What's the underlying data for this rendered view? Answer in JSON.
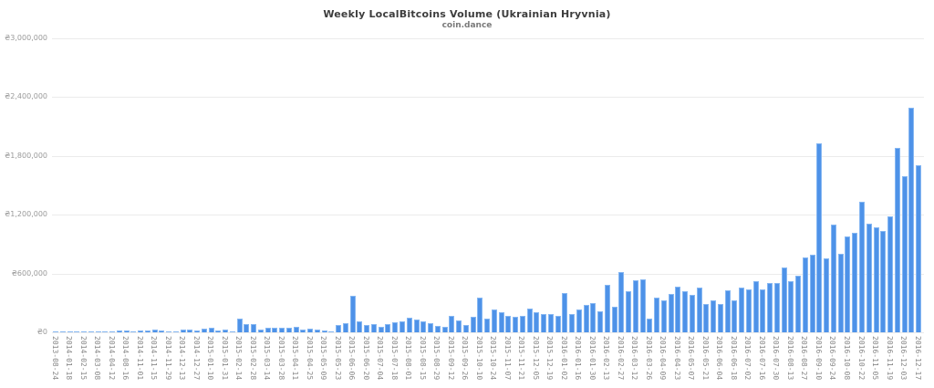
{
  "page": {
    "background": "#ffffff"
  },
  "chart_data": {
    "type": "bar",
    "title": "Weekly LocalBitcoins Volume (Ukrainian Hryvnia)",
    "subtitle": "coin.dance",
    "currency_prefix": "₴",
    "ylim": [
      0,
      3000000
    ],
    "ytick_interval": 600000,
    "ytick_labels_top_to_bottom": [
      "₴3,000,000",
      "₴2,400,000",
      "₴1,800,000",
      "₴1,200,000",
      "₴600,000",
      "₴0"
    ],
    "grid": "horizontal",
    "legend": "none",
    "x_labels_every_other_bar": [
      "2013-08-24",
      "2014-01-18",
      "2014-02-15",
      "2014-03-08",
      "2014-04-12",
      "2014-08-16",
      "2014-11-01",
      "2014-11-15",
      "2014-11-29",
      "2014-12-13",
      "2014-12-27",
      "2015-01-10",
      "2015-01-31",
      "2015-02-14",
      "2015-02-28",
      "2015-03-14",
      "2015-03-28",
      "2015-04-11",
      "2015-04-25",
      "2015-05-09",
      "2015-05-23",
      "2015-06-06",
      "2015-06-20",
      "2015-07-04",
      "2015-07-18",
      "2015-08-01",
      "2015-08-15",
      "2015-08-29",
      "2015-09-12",
      "2015-09-26",
      "2015-10-10",
      "2015-10-24",
      "2015-11-07",
      "2015-11-21",
      "2015-12-05",
      "2015-12-19",
      "2016-01-02",
      "2016-01-16",
      "2016-01-30",
      "2016-02-13",
      "2016-02-27",
      "2016-03-12",
      "2016-03-26",
      "2016-04-09",
      "2016-04-23",
      "2016-05-07",
      "2016-05-21",
      "2016-06-04",
      "2016-06-18",
      "2016-07-02",
      "2016-07-16",
      "2016-07-30",
      "2016-08-13",
      "2016-08-27",
      "2016-09-10",
      "2016-09-24",
      "2016-10-08",
      "2016-10-22",
      "2016-11-05",
      "2016-11-19",
      "2016-12-03",
      "2016-12-17"
    ],
    "values": [
      5000,
      8000,
      6000,
      10000,
      8000,
      5000,
      12000,
      12000,
      10000,
      15000,
      15000,
      12000,
      18000,
      20000,
      30000,
      18000,
      10000,
      12000,
      30000,
      25000,
      18000,
      37000,
      46000,
      19000,
      25000,
      12000,
      140000,
      87000,
      87000,
      25000,
      46000,
      50000,
      42000,
      46000,
      56000,
      25000,
      34000,
      25000,
      15000,
      10000,
      75000,
      90000,
      370000,
      110000,
      75000,
      85000,
      60000,
      85000,
      100000,
      110000,
      148000,
      130000,
      108000,
      93000,
      68000,
      56000,
      170000,
      124000,
      77000,
      155000,
      357000,
      139000,
      233000,
      202000,
      170000,
      155000,
      171000,
      242000,
      202000,
      186000,
      186000,
      171000,
      404000,
      186000,
      233000,
      280000,
      295000,
      217000,
      481000,
      264000,
      615000,
      420000,
      530000,
      545000,
      140000,
      355000,
      330000,
      395000,
      470000,
      415000,
      380000,
      455000,
      285000,
      330000,
      285000,
      425000,
      330000,
      455000,
      440000,
      520000,
      440000,
      505000,
      505000,
      665000,
      525000,
      580000,
      760000,
      790000,
      1930000,
      755000,
      1100000,
      805000,
      975000,
      1020000,
      1335000,
      1110000,
      1070000,
      1030000,
      1185000,
      1885000,
      1590000,
      2290000,
      1705000
    ],
    "colors": {
      "bar": "#4e92e8",
      "bar_border": "#86b7f2",
      "gridline": "#ebebeb",
      "title": "#3d3d3d",
      "subtitle": "#7a7a7a",
      "y_label": "#999999",
      "x_label": "#888888",
      "background": "#ffffff"
    }
  }
}
